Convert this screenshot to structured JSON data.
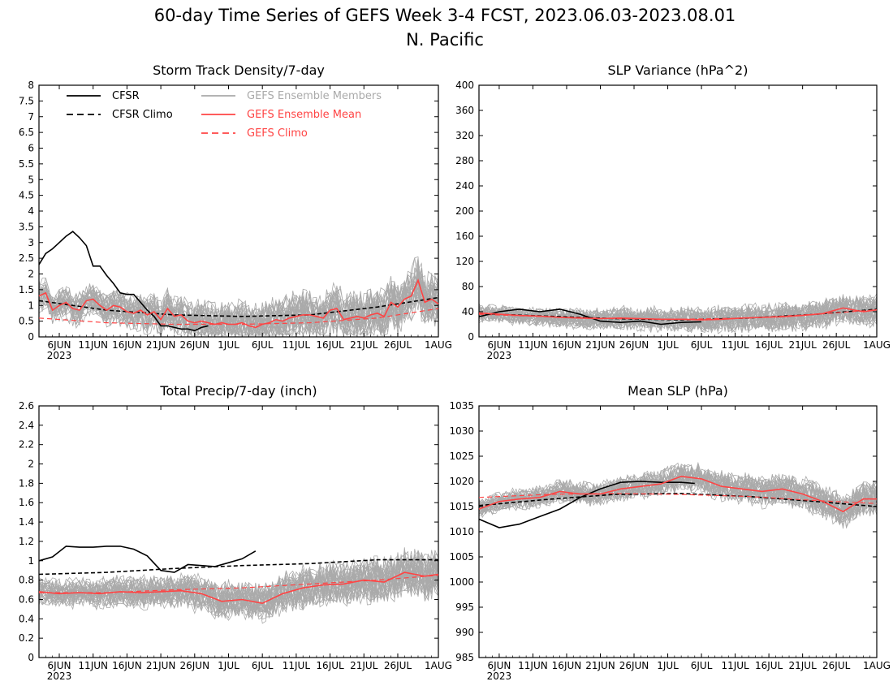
{
  "figure": {
    "title": "60-day Time Series of GEFS Week 3-4 FCST, 2023.06.03-2023.08.01",
    "subtitle": "N. Pacific"
  },
  "colors": {
    "cfsr": "#000000",
    "ensemble_members": "#aaaaaa",
    "ensemble_mean": "#ff4444",
    "gefs_climo": "#ff4444"
  },
  "legend": [
    {
      "key": "cfsr",
      "label": "CFSR",
      "color": "#000000",
      "dash": false
    },
    {
      "key": "cfsr_climo",
      "label": "CFSR Climo",
      "color": "#000000",
      "dash": true
    },
    {
      "key": "members",
      "label": "GEFS Ensemble Members",
      "color": "#aaaaaa",
      "dash": false
    },
    {
      "key": "mean",
      "label": "GEFS Ensemble Mean",
      "color": "#ff4444",
      "dash": false
    },
    {
      "key": "gefs_climo",
      "label": "GEFS Climo",
      "color": "#ff4444",
      "dash": true
    }
  ],
  "x_axis": {
    "start_date": "2023-06-03",
    "end_date": "2023-08-01",
    "tick_labels": [
      "6JUN",
      "11JUN",
      "16JUN",
      "21JUN",
      "26JUN",
      "1JUL",
      "6JUL",
      "11JUL",
      "16JUL",
      "21JUL",
      "26JUL",
      "1AUG"
    ],
    "tick_dates": [
      "2023-06-06",
      "2023-06-11",
      "2023-06-16",
      "2023-06-21",
      "2023-06-26",
      "2023-07-01",
      "2023-07-06",
      "2023-07-11",
      "2023-07-16",
      "2023-07-21",
      "2023-07-26",
      "2023-08-01"
    ],
    "year_label": "2023"
  },
  "chart_data": [
    {
      "type": "line",
      "id": "storm",
      "title": "Storm Track Density/7-day",
      "ylim": [
        0,
        8
      ],
      "yticks": [
        0,
        0.5,
        1,
        1.5,
        2,
        2.5,
        3,
        3.5,
        4,
        4.5,
        5,
        5.5,
        6,
        6.5,
        7,
        7.5,
        8
      ],
      "ytick_labels": [
        "0",
        "0.5",
        "1",
        "1.5",
        "2",
        "2.5",
        "3",
        "3.5",
        "4",
        "4.5",
        "5",
        "5.5",
        "6",
        "6.5",
        "7",
        "7.5",
        "8"
      ],
      "members": {
        "count": 31,
        "center_series": "mean",
        "spread": 0.55,
        "min": 0.05,
        "seed": 11
      },
      "series": [
        {
          "key": "cfsr_climo",
          "dash": true,
          "x": [
            "2023-06-03",
            "2023-06-13",
            "2023-06-23",
            "2023-07-03",
            "2023-07-13",
            "2023-07-23",
            "2023-08-01"
          ],
          "y": [
            1.15,
            0.85,
            0.7,
            0.65,
            0.7,
            0.95,
            1.25
          ]
        },
        {
          "key": "gefs_climo",
          "dash": true,
          "x": [
            "2023-06-03",
            "2023-06-13",
            "2023-06-23",
            "2023-07-03",
            "2023-07-13",
            "2023-07-23",
            "2023-08-01"
          ],
          "y": [
            0.6,
            0.45,
            0.4,
            0.4,
            0.45,
            0.6,
            0.9
          ]
        },
        {
          "key": "cfsr",
          "dash": false,
          "x": [
            "2023-06-03",
            "2023-06-04",
            "2023-06-05",
            "2023-06-06",
            "2023-06-07",
            "2023-06-08",
            "2023-06-09",
            "2023-06-10",
            "2023-06-11",
            "2023-06-12",
            "2023-06-13",
            "2023-06-14",
            "2023-06-15",
            "2023-06-16",
            "2023-06-17",
            "2023-06-18",
            "2023-06-19",
            "2023-06-20",
            "2023-06-21",
            "2023-06-22",
            "2023-06-23",
            "2023-06-24",
            "2023-06-25",
            "2023-06-26",
            "2023-06-27",
            "2023-06-28"
          ],
          "y": [
            2.3,
            2.65,
            2.8,
            3.0,
            3.2,
            3.35,
            3.15,
            2.9,
            2.25,
            2.25,
            1.95,
            1.7,
            1.4,
            1.35,
            1.35,
            1.1,
            0.85,
            0.65,
            0.35,
            0.35,
            0.3,
            0.25,
            0.25,
            0.2,
            0.3,
            0.35
          ]
        },
        {
          "key": "mean",
          "dash": false,
          "x": [
            "2023-06-03",
            "2023-06-04",
            "2023-06-05",
            "2023-06-06",
            "2023-06-07",
            "2023-06-08",
            "2023-06-09",
            "2023-06-10",
            "2023-06-11",
            "2023-06-12",
            "2023-06-13",
            "2023-06-14",
            "2023-06-15",
            "2023-06-16",
            "2023-06-17",
            "2023-06-18",
            "2023-06-19",
            "2023-06-20",
            "2023-06-21",
            "2023-06-22",
            "2023-06-23",
            "2023-06-24",
            "2023-06-25",
            "2023-06-26",
            "2023-06-27",
            "2023-06-28",
            "2023-06-29",
            "2023-06-30",
            "2023-07-01",
            "2023-07-02",
            "2023-07-03",
            "2023-07-04",
            "2023-07-05",
            "2023-07-06",
            "2023-07-07",
            "2023-07-08",
            "2023-07-09",
            "2023-07-10",
            "2023-07-11",
            "2023-07-12",
            "2023-07-13",
            "2023-07-14",
            "2023-07-15",
            "2023-07-16",
            "2023-07-17",
            "2023-07-18",
            "2023-07-19",
            "2023-07-20",
            "2023-07-21",
            "2023-07-22",
            "2023-07-23",
            "2023-07-24",
            "2023-07-25",
            "2023-07-26",
            "2023-07-27",
            "2023-07-28",
            "2023-07-29",
            "2023-07-30",
            "2023-07-31",
            "2023-08-01"
          ],
          "y": [
            1.3,
            1.4,
            0.85,
            1.0,
            1.1,
            0.9,
            0.85,
            1.15,
            1.2,
            1.0,
            0.85,
            1.0,
            0.95,
            0.8,
            0.75,
            0.85,
            0.7,
            0.8,
            0.55,
            0.9,
            0.65,
            0.7,
            0.5,
            0.45,
            0.5,
            0.45,
            0.4,
            0.45,
            0.4,
            0.4,
            0.45,
            0.35,
            0.3,
            0.4,
            0.45,
            0.55,
            0.5,
            0.6,
            0.65,
            0.7,
            0.7,
            0.65,
            0.6,
            0.85,
            0.9,
            0.55,
            0.6,
            0.65,
            0.6,
            0.7,
            0.75,
            0.65,
            1.1,
            0.95,
            1.2,
            1.3,
            1.8,
            1.1,
            1.2,
            1.05
          ]
        }
      ]
    },
    {
      "type": "line",
      "id": "slpvar",
      "title": "SLP Variance (hPa^2)",
      "ylim": [
        0,
        400
      ],
      "yticks": [
        0,
        40,
        80,
        120,
        160,
        200,
        240,
        280,
        320,
        360,
        400
      ],
      "ytick_labels": [
        "0",
        "40",
        "80",
        "120",
        "160",
        "200",
        "240",
        "280",
        "320",
        "360",
        "400"
      ],
      "members": {
        "count": 31,
        "center_series": "mean",
        "spread": 16,
        "min": 5,
        "seed": 23
      },
      "series": [
        {
          "key": "cfsr_climo",
          "dash": true,
          "x": [
            "2023-06-03",
            "2023-06-13",
            "2023-06-23",
            "2023-07-03",
            "2023-07-13",
            "2023-07-23",
            "2023-08-01"
          ],
          "y": [
            37,
            33,
            29,
            27,
            30,
            36,
            44
          ]
        },
        {
          "key": "gefs_climo",
          "dash": true,
          "x": [
            "2023-06-03",
            "2023-06-13",
            "2023-06-23",
            "2023-07-03",
            "2023-07-13",
            "2023-07-23",
            "2023-08-01"
          ],
          "y": [
            36,
            32,
            29,
            28,
            30,
            36,
            43
          ]
        },
        {
          "key": "cfsr",
          "dash": false,
          "x": [
            "2023-06-03",
            "2023-06-06",
            "2023-06-09",
            "2023-06-12",
            "2023-06-15",
            "2023-06-18",
            "2023-06-21",
            "2023-06-24",
            "2023-06-27",
            "2023-06-30",
            "2023-07-03",
            "2023-07-06"
          ],
          "y": [
            32,
            40,
            44,
            40,
            44,
            36,
            25,
            23,
            25,
            20,
            23,
            24
          ]
        },
        {
          "key": "mean",
          "dash": false,
          "x": [
            "2023-06-03",
            "2023-06-06",
            "2023-06-09",
            "2023-06-12",
            "2023-06-15",
            "2023-06-18",
            "2023-06-21",
            "2023-06-24",
            "2023-06-27",
            "2023-06-30",
            "2023-07-03",
            "2023-07-06",
            "2023-07-09",
            "2023-07-12",
            "2023-07-15",
            "2023-07-18",
            "2023-07-21",
            "2023-07-24",
            "2023-07-27",
            "2023-07-30",
            "2023-08-01"
          ],
          "y": [
            38,
            36,
            34,
            33,
            31,
            30,
            29,
            30,
            29,
            28,
            28,
            27,
            28,
            30,
            31,
            32,
            34,
            37,
            46,
            40,
            43
          ]
        }
      ]
    },
    {
      "type": "line",
      "id": "precip",
      "title": "Total Precip/7-day (inch)",
      "ylim": [
        0,
        2.6
      ],
      "yticks": [
        0,
        0.2,
        0.4,
        0.6,
        0.8,
        1,
        1.2,
        1.4,
        1.6,
        1.8,
        2,
        2.2,
        2.4,
        2.6
      ],
      "ytick_labels": [
        "0",
        "0.2",
        "0.4",
        "0.6",
        "0.8",
        "1",
        "1.2",
        "1.4",
        "1.6",
        "1.8",
        "2",
        "2.2",
        "2.4",
        "2.6"
      ],
      "members": {
        "count": 31,
        "center_series": "mean",
        "spread": 0.16,
        "min": 0.15,
        "seed": 37
      },
      "series": [
        {
          "key": "cfsr_climo",
          "dash": true,
          "x": [
            "2023-06-03",
            "2023-06-13",
            "2023-06-23",
            "2023-07-03",
            "2023-07-13",
            "2023-07-23",
            "2023-08-01"
          ],
          "y": [
            0.86,
            0.88,
            0.92,
            0.95,
            0.97,
            1.01,
            1.01
          ]
        },
        {
          "key": "gefs_climo",
          "dash": true,
          "x": [
            "2023-06-03",
            "2023-06-13",
            "2023-06-23",
            "2023-07-03",
            "2023-07-13",
            "2023-07-23",
            "2023-08-01"
          ],
          "y": [
            0.67,
            0.67,
            0.7,
            0.72,
            0.76,
            0.8,
            0.85
          ]
        },
        {
          "key": "cfsr",
          "dash": false,
          "x": [
            "2023-06-03",
            "2023-06-05",
            "2023-06-07",
            "2023-06-09",
            "2023-06-11",
            "2023-06-13",
            "2023-06-15",
            "2023-06-17",
            "2023-06-19",
            "2023-06-21",
            "2023-06-23",
            "2023-06-25",
            "2023-06-27",
            "2023-06-29",
            "2023-07-01",
            "2023-07-03",
            "2023-07-05"
          ],
          "y": [
            1.0,
            1.04,
            1.15,
            1.14,
            1.14,
            1.15,
            1.15,
            1.12,
            1.05,
            0.9,
            0.88,
            0.96,
            0.95,
            0.94,
            0.98,
            1.02,
            1.1
          ]
        },
        {
          "key": "mean",
          "dash": false,
          "x": [
            "2023-06-03",
            "2023-06-06",
            "2023-06-09",
            "2023-06-12",
            "2023-06-15",
            "2023-06-18",
            "2023-06-21",
            "2023-06-24",
            "2023-06-27",
            "2023-06-30",
            "2023-07-03",
            "2023-07-06",
            "2023-07-09",
            "2023-07-12",
            "2023-07-15",
            "2023-07-18",
            "2023-07-21",
            "2023-07-24",
            "2023-07-27",
            "2023-07-30",
            "2023-08-01"
          ],
          "y": [
            0.68,
            0.66,
            0.67,
            0.66,
            0.68,
            0.67,
            0.68,
            0.69,
            0.66,
            0.58,
            0.6,
            0.56,
            0.66,
            0.72,
            0.75,
            0.76,
            0.8,
            0.78,
            0.88,
            0.84,
            0.86
          ]
        }
      ]
    },
    {
      "type": "line",
      "id": "meanslp",
      "title": "Mean SLP (hPa)",
      "ylim": [
        985,
        1035
      ],
      "yticks": [
        985,
        990,
        995,
        1000,
        1005,
        1010,
        1015,
        1020,
        1025,
        1030,
        1035
      ],
      "ytick_labels": [
        "985",
        "990",
        "995",
        "1000",
        "1005",
        "1010",
        "1015",
        "1020",
        "1025",
        "1030",
        "1035"
      ],
      "members": {
        "count": 31,
        "center_series": "mean",
        "spread": 2.2,
        "min": 985,
        "seed": 51
      },
      "series": [
        {
          "key": "cfsr_climo",
          "dash": true,
          "x": [
            "2023-06-03",
            "2023-06-13",
            "2023-06-23",
            "2023-07-03",
            "2023-07-13",
            "2023-07-23",
            "2023-08-01"
          ],
          "y": [
            1015.2,
            1016.4,
            1017.4,
            1017.6,
            1017.0,
            1016.0,
            1015.0
          ]
        },
        {
          "key": "gefs_climo",
          "dash": true,
          "x": [
            "2023-06-03",
            "2023-06-13",
            "2023-06-23",
            "2023-07-03",
            "2023-07-13",
            "2023-07-23",
            "2023-08-01"
          ],
          "y": [
            1016.8,
            1017.4,
            1017.6,
            1017.4,
            1017.0,
            1016.2,
            1015.6
          ]
        },
        {
          "key": "cfsr",
          "dash": false,
          "x": [
            "2023-06-03",
            "2023-06-06",
            "2023-06-09",
            "2023-06-12",
            "2023-06-15",
            "2023-06-18",
            "2023-06-21",
            "2023-06-24",
            "2023-06-27",
            "2023-06-30",
            "2023-07-03",
            "2023-07-05"
          ],
          "y": [
            1012.5,
            1010.8,
            1011.5,
            1013.0,
            1014.5,
            1016.8,
            1018.5,
            1019.8,
            1020.0,
            1019.8,
            1019.8,
            1019.6
          ]
        },
        {
          "key": "mean",
          "dash": false,
          "x": [
            "2023-06-03",
            "2023-06-06",
            "2023-06-09",
            "2023-06-12",
            "2023-06-15",
            "2023-06-18",
            "2023-06-21",
            "2023-06-24",
            "2023-06-27",
            "2023-06-30",
            "2023-07-03",
            "2023-07-06",
            "2023-07-09",
            "2023-07-12",
            "2023-07-15",
            "2023-07-18",
            "2023-07-21",
            "2023-07-24",
            "2023-07-27",
            "2023-07-30",
            "2023-08-01"
          ],
          "y": [
            1014.5,
            1016.0,
            1016.5,
            1016.8,
            1018.0,
            1017.5,
            1017.5,
            1018.5,
            1019.0,
            1019.5,
            1021.0,
            1020.5,
            1019.0,
            1018.5,
            1018.0,
            1018.5,
            1017.5,
            1016.0,
            1014.0,
            1016.5,
            1016.5
          ]
        }
      ]
    }
  ]
}
